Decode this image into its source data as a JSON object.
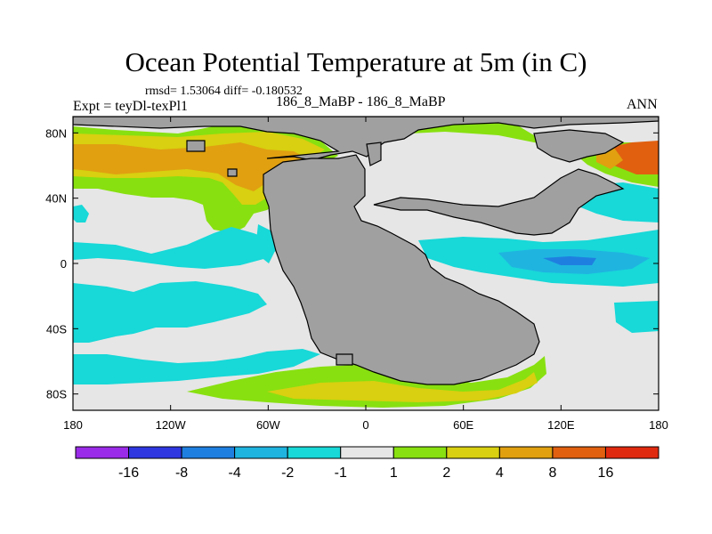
{
  "chart_data": {
    "type": "heatmap",
    "title": "Ocean Potential Temperature at 5m (in C)",
    "stats": "rmsd= 1.53064 diff= -0.180532",
    "left_label": "Expt = teyDl-texPl1",
    "center_label": "186_8_MaBP - 186_8_MaBP",
    "right_label": "ANN",
    "x_ticks": [
      "180",
      "120W",
      "60W",
      "0",
      "60E",
      "120E",
      "180"
    ],
    "x_tick_values": [
      -180,
      -120,
      -60,
      0,
      60,
      120,
      180
    ],
    "y_ticks": [
      "80N",
      "40N",
      "0",
      "40S",
      "80S"
    ],
    "y_tick_values": [
      80,
      40,
      0,
      -40,
      -80
    ],
    "xlim": [
      -180,
      180
    ],
    "ylim": [
      -90,
      90
    ],
    "land_color": "#a0a0a0",
    "colorbar": {
      "labels": [
        "-16",
        "-8",
        "-4",
        "-2",
        "-1",
        "1",
        "2",
        "4",
        "8",
        "16"
      ],
      "colors": [
        "#9a2be8",
        "#2f37e0",
        "#1f7fe0",
        "#1fb4e0",
        "#18d8d8",
        "#e6e6e6",
        "#88e010",
        "#d8d010",
        "#e0a010",
        "#e06010",
        "#e02a10"
      ]
    },
    "regions": [
      {
        "name": "north-pacific-warm-band",
        "value": "4 to 8",
        "color_index": 8
      },
      {
        "name": "north-pacific-yellow-band",
        "value": "2 to 4",
        "color_index": 7
      },
      {
        "name": "north-pacific-green-band",
        "value": "1 to 2",
        "color_index": 6
      },
      {
        "name": "subtropical-cool-band",
        "value": "-2 to -1",
        "color_index": 4
      },
      {
        "name": "southern-ocean-warm-band",
        "value": "1 to 4",
        "color_index": 7
      },
      {
        "name": "southern-cool-band",
        "value": "-2 to -1",
        "color_index": 4
      },
      {
        "name": "equatorial-tethys-cool",
        "value": "-4 to -2",
        "color_index": 3
      },
      {
        "name": "arctic-green",
        "value": "1 to 2",
        "color_index": 6
      },
      {
        "name": "east-tethys-warm",
        "value": "4 to 16",
        "color_index": 9
      }
    ]
  }
}
